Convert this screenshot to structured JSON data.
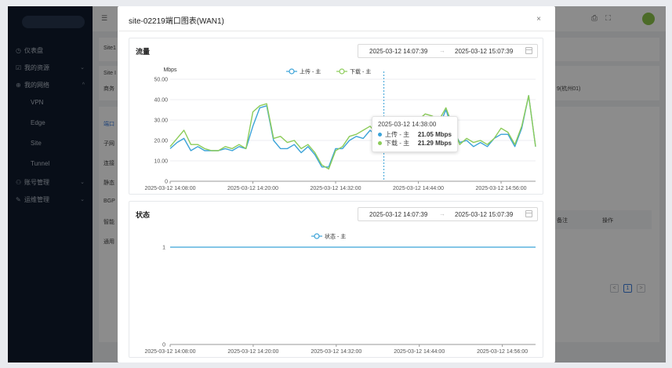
{
  "sidebar": {
    "items": [
      {
        "icon": "dashboard-icon",
        "label": "仪表盘",
        "chevron": ""
      },
      {
        "icon": "resource-icon",
        "label": "我的资源",
        "chevron": "⌄"
      },
      {
        "icon": "network-icon",
        "label": "我的网络",
        "chevron": "^"
      },
      {
        "icon": "account-icon",
        "label": "账号管理",
        "chevron": "⌄"
      },
      {
        "icon": "ops-icon",
        "label": "运维管理",
        "chevron": "⌄"
      }
    ],
    "subitems": [
      "VPN",
      "Edge",
      "Site",
      "Tunnel"
    ]
  },
  "background": {
    "col_items": [
      "Site1",
      "Site I",
      "商务",
      "端口",
      "子网",
      "连接",
      "静态",
      "BGP",
      "智能",
      "通用"
    ],
    "right_text": "9(杭州01)",
    "table_headers": [
      "备注",
      "操作"
    ],
    "pager": {
      "prev": "<",
      "page": "1",
      "next": ">"
    }
  },
  "modal": {
    "title": "site-02219端口图表(WAN1)",
    "close_glyph": "×"
  },
  "traffic": {
    "title": "流量",
    "range_start": "2025-03-12 14:07:39",
    "range_arrow": "→",
    "range_end": "2025-03-12 15:07:39",
    "tooltip": {
      "time": "2025-03-12 14:38:00",
      "rows": [
        {
          "name": "上传 - 主",
          "value": "21.05 Mbps",
          "color": "#3ba3d8"
        },
        {
          "name": "下载 - 主",
          "value": "21.29 Mbps",
          "color": "#8ccc5a"
        }
      ]
    }
  },
  "status": {
    "title": "状态",
    "range_start": "2025-03-12 14:07:39",
    "range_arrow": "→",
    "range_end": "2025-03-12 15:07:39"
  },
  "chart_data": [
    {
      "type": "line",
      "ylabel": "Mbps",
      "ylim": [
        0,
        50
      ],
      "yticks": [
        "0",
        "10.00",
        "20.00",
        "30.00",
        "40.00",
        "50.00"
      ],
      "xtick_labels": [
        "2025-03-12 14:08:00",
        "2025-03-12 14:20:00",
        "2025-03-12 14:32:00",
        "2025-03-12 14:44:00",
        "2025-03-12 14:56:00"
      ],
      "legend_position": "top-center",
      "grid": true,
      "highlight_index": 31,
      "series": [
        {
          "name": "上传 - 主",
          "color": "#3ba3d8",
          "values": [
            16,
            19,
            21,
            15,
            17,
            15,
            15,
            15,
            16,
            15,
            17,
            16,
            27,
            36,
            37,
            20,
            16,
            16,
            18,
            14,
            17,
            13,
            7,
            7,
            16,
            16,
            20,
            22,
            21,
            25,
            22,
            21.05,
            22,
            25,
            24,
            27,
            29,
            30,
            28,
            27,
            35,
            25,
            19,
            20,
            17,
            19,
            17,
            21,
            23,
            23,
            17,
            26,
            42,
            17
          ]
        },
        {
          "name": "下载 - 主",
          "color": "#8ccc5a",
          "values": [
            17,
            21,
            25,
            18,
            18,
            16,
            15,
            15,
            17,
            16,
            18,
            16,
            34,
            37,
            38,
            21,
            22,
            19,
            20,
            16,
            18,
            14,
            8,
            6,
            15,
            17,
            22,
            23,
            25,
            27,
            23,
            21.29,
            23,
            26,
            25,
            28,
            30,
            33,
            32,
            30,
            36,
            27,
            18,
            21,
            19,
            20,
            18,
            21,
            26,
            24,
            18,
            27,
            42,
            17
          ]
        }
      ]
    },
    {
      "type": "line",
      "ylim": [
        0,
        1
      ],
      "yticks": [
        "0",
        "1"
      ],
      "xtick_labels": [
        "2025-03-12 14:08:00",
        "2025-03-12 14:20:00",
        "2025-03-12 14:32:00",
        "2025-03-12 14:44:00",
        "2025-03-12 14:56:00"
      ],
      "legend_position": "top-center",
      "series": [
        {
          "name": "状态 - 主",
          "color": "#3ba3d8",
          "values": [
            1,
            1
          ]
        }
      ]
    }
  ]
}
